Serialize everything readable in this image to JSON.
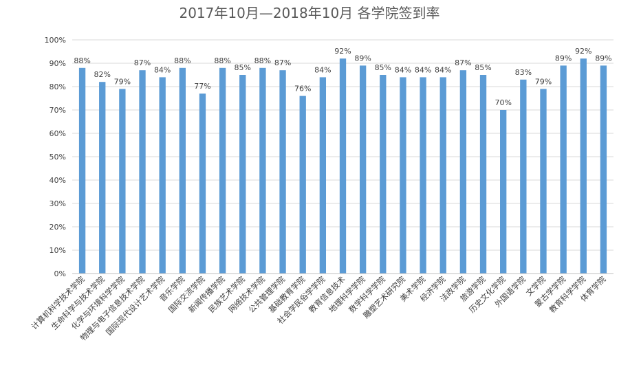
{
  "chart_data": {
    "type": "bar",
    "title": "2017年10月—2018年10月 各学院签到率",
    "xlabel": "",
    "ylabel": "",
    "ylim": [
      0,
      100
    ],
    "yticks": [
      "0%",
      "10%",
      "20%",
      "30%",
      "40%",
      "50%",
      "60%",
      "70%",
      "80%",
      "90%",
      "100%"
    ],
    "grid": true,
    "legend": "none",
    "bar_color": "#5b9bd5",
    "categories": [
      "计算机科学技术学院",
      "生命科学与技术学院",
      "化学与环境科学学院",
      "物理与电子信息技术学院",
      "国际现代设计艺术学院",
      "音乐学院",
      "国际交流学院",
      "新闻传播学院",
      "民族艺术学院",
      "网络技术学院",
      "公共管理学院",
      "基础教育学院",
      "社会学民俗学学院",
      "教育信息技术",
      "地理科学学院",
      "数学科学学院",
      "雕塑艺术研究院",
      "美术学院",
      "经济学院",
      "法政学院",
      "旅游学院",
      "历史文化学院",
      "外国语学院",
      "文学院",
      "蒙古学学院",
      "教育科学学院",
      "体育学院"
    ],
    "values": [
      88,
      82,
      79,
      87,
      84,
      88,
      77,
      88,
      85,
      88,
      87,
      76,
      84,
      92,
      89,
      85,
      84,
      84,
      84,
      87,
      85,
      70,
      83,
      79,
      89,
      92,
      89
    ],
    "value_labels": [
      "88%",
      "82%",
      "79%",
      "87%",
      "84%",
      "88%",
      "77%",
      "88%",
      "85%",
      "88%",
      "87%",
      "76%",
      "84%",
      "92%",
      "89%",
      "85%",
      "84%",
      "84%",
      "84%",
      "87%",
      "85%",
      "70%",
      "83%",
      "79%",
      "89%",
      "92%",
      "89%"
    ]
  }
}
